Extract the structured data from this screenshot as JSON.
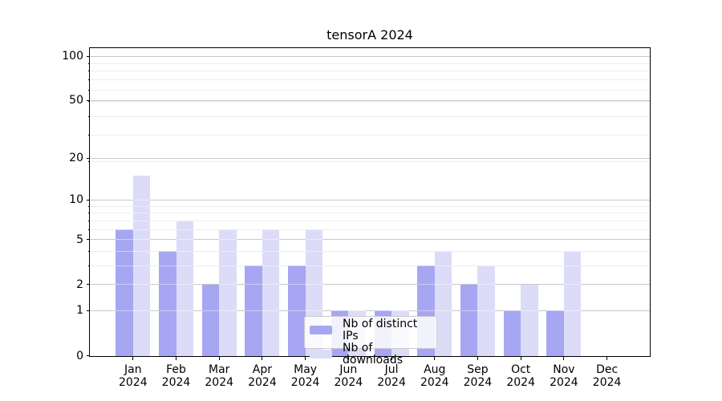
{
  "chart_data": {
    "type": "bar",
    "title": "tensorA 2024",
    "categories": [
      "Jan 2024",
      "Feb 2024",
      "Mar 2024",
      "Apr 2024",
      "May 2024",
      "Jun 2024",
      "Jul 2024",
      "Aug 2024",
      "Sep 2024",
      "Oct 2024",
      "Nov 2024",
      "Dec 2024"
    ],
    "series": [
      {
        "name": "Nb of distinct IPs",
        "color": "#a6a6f2",
        "values": [
          6,
          4,
          2,
          3,
          3,
          1,
          1,
          3,
          2,
          1,
          1,
          0
        ]
      },
      {
        "name": "Nb of downloads",
        "color": "#dcdcf8",
        "values": [
          15,
          7,
          6,
          6,
          6,
          1,
          1,
          4,
          3,
          2,
          4,
          0
        ]
      }
    ],
    "y_axis": {
      "scale": "log10(1+x)",
      "major_ticks": [
        0,
        1,
        2,
        5,
        10,
        20,
        50,
        100
      ],
      "minor_gridline_values": [
        3,
        4,
        6,
        7,
        8,
        9,
        19,
        29,
        39,
        49,
        59,
        69,
        79,
        89
      ],
      "range_top": 114
    },
    "x_axis": {
      "tick_label_lines": 2
    },
    "legend": {
      "location": "lower center inside plot",
      "entries": [
        "Nb of distinct IPs",
        "Nb of downloads"
      ]
    },
    "grid": true
  },
  "colors": {
    "figure_background": "#ffffff",
    "bar_distinct_ips": "#a6a6f2",
    "bar_downloads": "#dcdcf8",
    "grid_major": "#c8c8c8",
    "grid_minor": "#ededed",
    "spine": "#000000",
    "tick_text": "#000000",
    "legend_border": "#cccccc"
  }
}
